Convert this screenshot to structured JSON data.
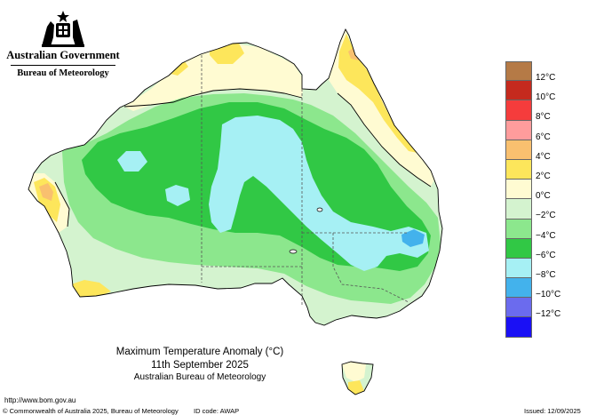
{
  "header": {
    "gov_name": "Australian Government",
    "bureau_name": "Bureau of Meteorology",
    "crest_icon": "coat-of-arms-icon"
  },
  "map": {
    "title": "Maximum Temperature Anomaly (°C)",
    "date": "11th September 2025",
    "agency": "Australian Bureau of Meteorology",
    "colors": {
      "ocean": "#ffffff",
      "coast": "#000000",
      "state_border": "#555555",
      "band_0_to_2": "#fffbd2",
      "band_2_to_4": "#fde65b",
      "band_4_to_6": "#f9c06f",
      "band_neg2_to_0": "#d4f3cf",
      "band_neg4_to_neg2": "#8ce78d",
      "band_neg6_to_neg4": "#31c845",
      "band_neg8_to_neg6": "#a6f0f4",
      "band_neg10_to_neg8": "#43b2ec"
    }
  },
  "legend": {
    "items": [
      {
        "label": "12°C",
        "color": "#b57a46"
      },
      {
        "label": "10°C",
        "color": "#c52a1e"
      },
      {
        "label": "8°C",
        "color": "#f53c3c"
      },
      {
        "label": "6°C",
        "color": "#ff9c9c"
      },
      {
        "label": "4°C",
        "color": "#f9c06f"
      },
      {
        "label": "2°C",
        "color": "#fde65b"
      },
      {
        "label": "0°C",
        "color": "#fffbd2"
      },
      {
        "label": "−2°C",
        "color": "#d4f3cf"
      },
      {
        "label": "−4°C",
        "color": "#8ce78d"
      },
      {
        "label": "−6°C",
        "color": "#31c845"
      },
      {
        "label": "−8°C",
        "color": "#a6f0f4"
      },
      {
        "label": "−10°C",
        "color": "#43b2ec"
      },
      {
        "label": "−12°C",
        "color": "#6b6bee"
      },
      {
        "label": "",
        "color": "#1a10f5"
      }
    ]
  },
  "footer": {
    "url": "http://www.bom.gov.au",
    "copyright": "© Commonwealth of Australia 2025, Bureau of Meteorology",
    "id_code": "ID code: AWAP",
    "issued": "Issued: 12/09/2025"
  }
}
